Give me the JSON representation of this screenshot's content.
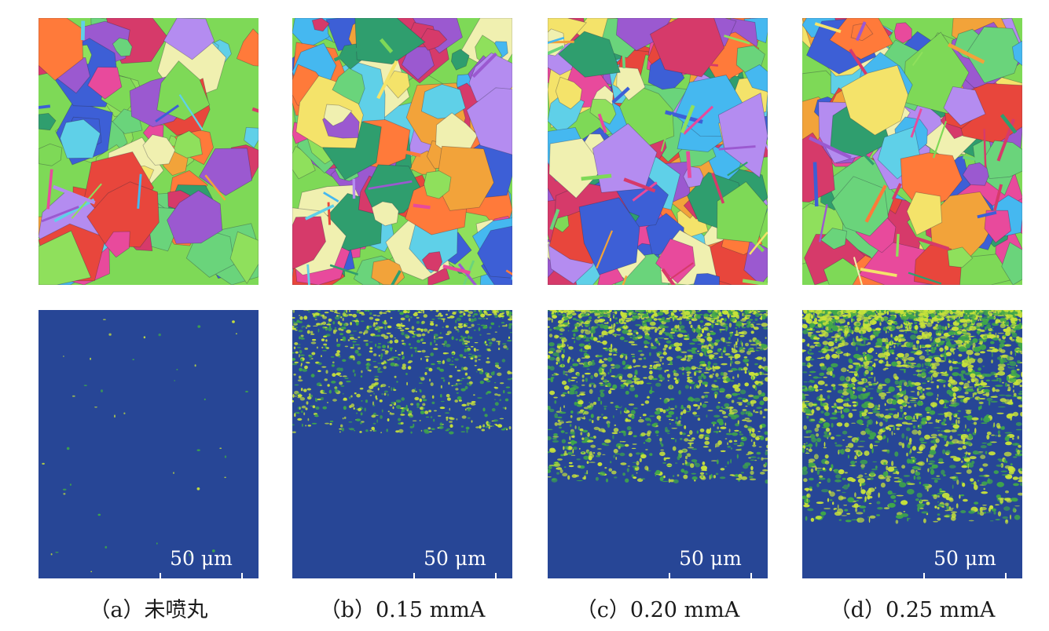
{
  "figure": {
    "panels": [
      {
        "id": "a",
        "caption": "（a）未喷丸",
        "scale_label": "50 μm",
        "deformation_level": 0.0
      },
      {
        "id": "b",
        "caption": "（b）0.15 mmA",
        "scale_label": "50 μm",
        "deformation_level": 0.35
      },
      {
        "id": "c",
        "caption": "（c）0.20 mmA",
        "scale_label": "50 μm",
        "deformation_level": 0.65
      },
      {
        "id": "d",
        "caption": "（d）0.25 mmA",
        "scale_label": "50 μm",
        "deformation_level": 0.9
      }
    ],
    "colors": {
      "kam_background": "#274696",
      "kam_strain_low": "#3fa64a",
      "kam_strain_high": "#c8e23a",
      "ipf_palette": [
        "#7ed957",
        "#e8463c",
        "#3d5fd6",
        "#9b59d0",
        "#f2a33a",
        "#5fd0e8",
        "#e84a9c",
        "#6ad47b",
        "#f4e36a",
        "#2f9e6e",
        "#ff7a3a",
        "#b48cf0",
        "#45b8f0",
        "#d63a6a",
        "#8fe05c",
        "#f0f0b0"
      ]
    }
  }
}
